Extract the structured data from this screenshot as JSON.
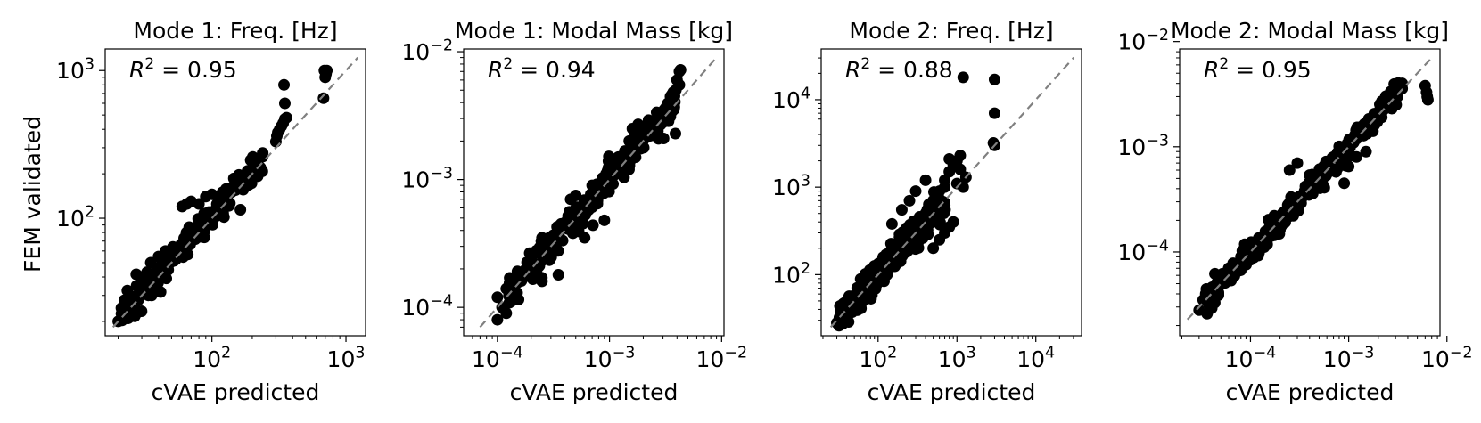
{
  "figure": {
    "ylabel_shared": "FEM validated",
    "point_color": "#000000",
    "diagonal_color": "#808080"
  },
  "chart_data": [
    {
      "type": "scatter",
      "title": "Mode 1: Freq. [Hz]",
      "xlabel": "cVAE predicted",
      "ylabel": "FEM validated",
      "annotation": {
        "prefix": "R",
        "sup": "2",
        "suffix": " = 0.95"
      },
      "xscale": "log",
      "yscale": "log",
      "xlim": [
        16,
        1400
      ],
      "ylim": [
        16,
        1400
      ],
      "x_ticks": [
        {
          "value": 100,
          "base": "10",
          "exp": "2"
        },
        {
          "value": 1000,
          "base": "10",
          "exp": "3"
        }
      ],
      "y_ticks": [
        {
          "value": 100,
          "base": "10",
          "exp": "2"
        },
        {
          "value": 1000,
          "base": "10",
          "exp": "3"
        }
      ],
      "cloud": {
        "n": 150,
        "log_start": 1.32,
        "log_end": 2.38,
        "spread": 0.05,
        "bias": 0.02
      },
      "points": [
        [
          20,
          20
        ],
        [
          23,
          22
        ],
        [
          25,
          25
        ],
        [
          26,
          27
        ],
        [
          28,
          28
        ],
        [
          30,
          33
        ],
        [
          32,
          31
        ],
        [
          35,
          38
        ],
        [
          38,
          36
        ],
        [
          40,
          45
        ],
        [
          42,
          48
        ],
        [
          45,
          52
        ],
        [
          48,
          50
        ],
        [
          52,
          55
        ],
        [
          55,
          60
        ],
        [
          60,
          58
        ],
        [
          65,
          70
        ],
        [
          70,
          80
        ],
        [
          75,
          72
        ],
        [
          80,
          90
        ],
        [
          85,
          92
        ],
        [
          90,
          100
        ],
        [
          95,
          110
        ],
        [
          100,
          105
        ],
        [
          110,
          120
        ],
        [
          120,
          130
        ],
        [
          130,
          135
        ],
        [
          140,
          150
        ],
        [
          150,
          155
        ],
        [
          160,
          165
        ],
        [
          170,
          175
        ],
        [
          180,
          190
        ],
        [
          190,
          195
        ],
        [
          200,
          210
        ],
        [
          210,
          200
        ],
        [
          220,
          215
        ],
        [
          230,
          220
        ],
        [
          300,
          330
        ],
        [
          305,
          360
        ],
        [
          310,
          380
        ],
        [
          320,
          400
        ],
        [
          330,
          420
        ],
        [
          340,
          440
        ],
        [
          350,
          470
        ],
        [
          360,
          480
        ],
        [
          350,
          600
        ],
        [
          345,
          800
        ],
        [
          680,
          650
        ],
        [
          700,
          900
        ],
        [
          710,
          950
        ],
        [
          720,
          1000
        ],
        [
          690,
          1000
        ],
        [
          60,
          120
        ],
        [
          65,
          125
        ],
        [
          70,
          130
        ],
        [
          80,
          125
        ],
        [
          90,
          140
        ],
        [
          100,
          145
        ],
        [
          110,
          140
        ],
        [
          120,
          150
        ],
        [
          35,
          50
        ],
        [
          40,
          55
        ],
        [
          45,
          60
        ],
        [
          30,
          40
        ]
      ]
    },
    {
      "type": "scatter",
      "title": "Mode 1: Modal Mass [kg]",
      "xlabel": "cVAE predicted",
      "ylabel": "",
      "annotation": {
        "prefix": "R",
        "sup": "2",
        "suffix": " = 0.94"
      },
      "xscale": "log",
      "yscale": "log",
      "xlim": [
        5e-05,
        0.0105
      ],
      "ylim": [
        6e-05,
        0.0105
      ],
      "x_ticks": [
        {
          "value": 0.0001,
          "base": "10",
          "exp": "−4"
        },
        {
          "value": 0.001,
          "base": "10",
          "exp": "−3"
        },
        {
          "value": 0.01,
          "base": "10",
          "exp": "−2"
        }
      ],
      "y_ticks": [
        {
          "value": 0.0001,
          "base": "10",
          "exp": "−4"
        },
        {
          "value": 0.001,
          "base": "10",
          "exp": "−3"
        },
        {
          "value": 0.01,
          "base": "10",
          "exp": "−2"
        }
      ],
      "cloud": {
        "n": 220,
        "log_start": -3.9,
        "log_end": -2.4,
        "spread": 0.07,
        "bias": 0.02
      },
      "points": [
        [
          0.0001,
          8e-05
        ],
        [
          0.00011,
          0.0001
        ],
        [
          0.00012,
          9e-05
        ],
        [
          0.00013,
          0.00012
        ],
        [
          0.00014,
          0.00015
        ],
        [
          0.00015,
          0.00013
        ],
        [
          0.0001,
          0.00012
        ],
        [
          0.00012,
          0.00014
        ],
        [
          0.00018,
          0.0002
        ],
        [
          0.0002,
          0.00018
        ],
        [
          0.00025,
          0.00016
        ],
        [
          0.00035,
          0.00018
        ],
        [
          0.00045,
          0.0007
        ],
        [
          0.0005,
          0.00075
        ],
        [
          0.0007,
          0.0009
        ],
        [
          0.001,
          0.0012
        ],
        [
          0.0012,
          0.0015
        ],
        [
          0.0015,
          0.002
        ],
        [
          0.002,
          0.0022
        ],
        [
          0.0025,
          0.0026
        ],
        [
          0.003,
          0.0028
        ],
        [
          0.0035,
          0.004
        ],
        [
          0.004,
          0.006
        ],
        [
          0.0042,
          0.007
        ],
        [
          0.0043,
          0.0072
        ],
        [
          0.0042,
          0.0055
        ],
        [
          0.0038,
          0.0045
        ],
        [
          0.0016,
          0.0025
        ],
        [
          0.0018,
          0.0027
        ],
        [
          0.0009,
          0.00048
        ],
        [
          0.0006,
          0.00035
        ],
        [
          0.0003,
          0.00025
        ],
        [
          0.00025,
          0.00035
        ]
      ]
    },
    {
      "type": "scatter",
      "title": "Mode 2: Freq. [Hz]",
      "xlabel": "cVAE predicted",
      "ylabel": "",
      "annotation": {
        "prefix": "R",
        "sup": "2",
        "suffix": " = 0.88"
      },
      "xscale": "log",
      "yscale": "log",
      "xlim": [
        19,
        38000
      ],
      "ylim": [
        20,
        38000
      ],
      "x_ticks": [
        {
          "value": 100,
          "base": "10",
          "exp": "2"
        },
        {
          "value": 1000,
          "base": "10",
          "exp": "3"
        },
        {
          "value": 10000,
          "base": "10",
          "exp": "4"
        }
      ],
      "y_ticks": [
        {
          "value": 100,
          "base": "10",
          "exp": "2"
        },
        {
          "value": 1000,
          "base": "10",
          "exp": "3"
        },
        {
          "value": 10000,
          "base": "10",
          "exp": "4"
        }
      ],
      "cloud": {
        "n": 280,
        "log_start": 1.5,
        "log_end": 2.85,
        "spread": 0.09,
        "bias": 0.0
      },
      "points": [
        [
          30,
          28
        ],
        [
          32,
          30
        ],
        [
          35,
          33
        ],
        [
          40,
          38
        ],
        [
          50,
          45
        ],
        [
          60,
          55
        ],
        [
          70,
          60
        ],
        [
          80,
          75
        ],
        [
          100,
          90
        ],
        [
          120,
          110
        ],
        [
          150,
          140
        ],
        [
          200,
          180
        ],
        [
          250,
          260
        ],
        [
          300,
          350
        ],
        [
          400,
          500
        ],
        [
          500,
          700
        ],
        [
          600,
          900
        ],
        [
          700,
          1200
        ],
        [
          800,
          1500
        ],
        [
          900,
          1800
        ],
        [
          1000,
          2000
        ],
        [
          1100,
          2300
        ],
        [
          400,
          1200
        ],
        [
          300,
          900
        ],
        [
          250,
          700
        ],
        [
          200,
          550
        ],
        [
          150,
          380
        ],
        [
          500,
          200
        ],
        [
          600,
          250
        ],
        [
          700,
          300
        ],
        [
          800,
          350
        ],
        [
          900,
          400
        ],
        [
          700,
          1000
        ],
        [
          800,
          2100
        ],
        [
          1200,
          18000
        ],
        [
          3000,
          17000
        ],
        [
          3000,
          7000
        ],
        [
          3000,
          3000
        ],
        [
          2900,
          3200
        ],
        [
          1300,
          1300
        ],
        [
          1200,
          1000
        ],
        [
          1100,
          1600
        ],
        [
          1000,
          1100
        ]
      ]
    },
    {
      "type": "scatter",
      "title": "Mode 2: Modal Mass [kg]",
      "xlabel": "cVAE predicted",
      "ylabel": "",
      "annotation": {
        "prefix": "R",
        "sup": "2",
        "suffix": " = 0.95"
      },
      "xscale": "log",
      "yscale": "log",
      "xlim": [
        1.9e-05,
        0.0085
      ],
      "ylim": [
        1.6e-05,
        0.0085
      ],
      "x_ticks": [
        {
          "value": 0.0001,
          "base": "10",
          "exp": "−4"
        },
        {
          "value": 0.001,
          "base": "10",
          "exp": "−3"
        },
        {
          "value": 0.01,
          "base": "10",
          "exp": "−2"
        }
      ],
      "y_ticks": [
        {
          "value": 0.0001,
          "base": "10",
          "exp": "−4"
        },
        {
          "value": 0.001,
          "base": "10",
          "exp": "−3"
        },
        {
          "value": 0.01,
          "base": "10",
          "exp": "−2"
        }
      ],
      "cloud": {
        "n": 300,
        "log_start": -4.45,
        "log_end": -2.45,
        "spread": 0.06,
        "bias": 0.0
      },
      "points": [
        [
          3e-05,
          2.8e-05
        ],
        [
          3.3e-05,
          3.5e-05
        ],
        [
          3.5e-05,
          4e-05
        ],
        [
          4e-05,
          4.5e-05
        ],
        [
          4.5e-05,
          5e-05
        ],
        [
          5e-05,
          5e-05
        ],
        [
          6e-05,
          7e-05
        ],
        [
          8e-05,
          9e-05
        ],
        [
          0.0001,
          0.00011
        ],
        [
          0.00015,
          0.00014
        ],
        [
          0.0002,
          0.00022
        ],
        [
          0.0003,
          0.00032
        ],
        [
          0.0004,
          0.0004
        ],
        [
          0.0005,
          0.0005
        ],
        [
          0.0007,
          0.0008
        ],
        [
          0.001,
          0.001
        ],
        [
          0.0012,
          0.0014
        ],
        [
          0.0015,
          0.0016
        ],
        [
          0.002,
          0.002
        ],
        [
          0.0025,
          0.0028
        ],
        [
          0.003,
          0.0035
        ],
        [
          0.0035,
          0.004
        ],
        [
          0.006,
          0.0038
        ],
        [
          0.0062,
          0.0033
        ],
        [
          0.0063,
          0.003
        ],
        [
          0.0064,
          0.0028
        ],
        [
          0.00025,
          0.0006
        ],
        [
          0.0003,
          0.0007
        ],
        [
          0.0012,
          0.0008
        ],
        [
          0.0015,
          0.0009
        ],
        [
          0.001,
          0.00065
        ],
        [
          0.0009,
          0.00045
        ]
      ]
    }
  ]
}
